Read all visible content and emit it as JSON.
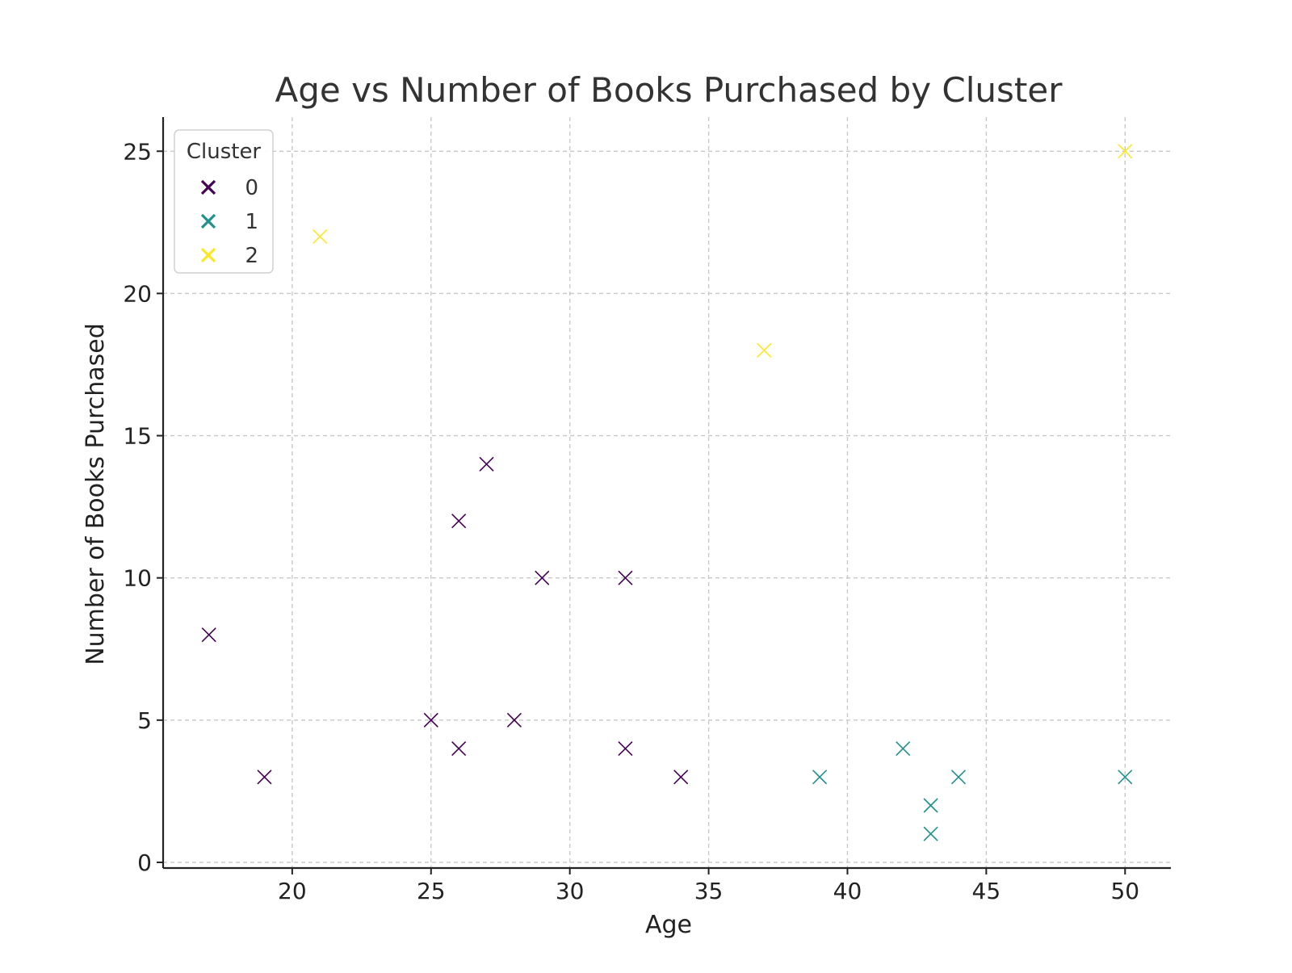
{
  "chart_data": {
    "type": "scatter",
    "title": "Age vs Number of Books Purchased by Cluster",
    "xlabel": "Age",
    "ylabel": "Number of Books Purchased",
    "xlim": [
      15.35,
      51.65
    ],
    "ylim": [
      -0.2,
      26.2
    ],
    "xticks": [
      20,
      25,
      30,
      35,
      40,
      45,
      50
    ],
    "yticks": [
      0,
      5,
      10,
      15,
      20,
      25
    ],
    "grid": true,
    "marker": "x",
    "legend": {
      "title": "Cluster",
      "placement": "upper-left"
    },
    "series": [
      {
        "name": "0",
        "color": "#440154",
        "points": [
          {
            "x": 17,
            "y": 8
          },
          {
            "x": 19,
            "y": 3
          },
          {
            "x": 25,
            "y": 5
          },
          {
            "x": 26,
            "y": 12
          },
          {
            "x": 26,
            "y": 4
          },
          {
            "x": 27,
            "y": 14
          },
          {
            "x": 28,
            "y": 5
          },
          {
            "x": 29,
            "y": 10
          },
          {
            "x": 32,
            "y": 10
          },
          {
            "x": 32,
            "y": 4
          },
          {
            "x": 34,
            "y": 3
          }
        ]
      },
      {
        "name": "1",
        "color": "#21918c",
        "points": [
          {
            "x": 39,
            "y": 3
          },
          {
            "x": 42,
            "y": 4
          },
          {
            "x": 43,
            "y": 2
          },
          {
            "x": 43,
            "y": 1
          },
          {
            "x": 44,
            "y": 3
          },
          {
            "x": 50,
            "y": 3
          }
        ]
      },
      {
        "name": "2",
        "color": "#fde725",
        "points": [
          {
            "x": 21,
            "y": 22
          },
          {
            "x": 37,
            "y": 18
          },
          {
            "x": 50,
            "y": 25
          }
        ]
      }
    ]
  }
}
